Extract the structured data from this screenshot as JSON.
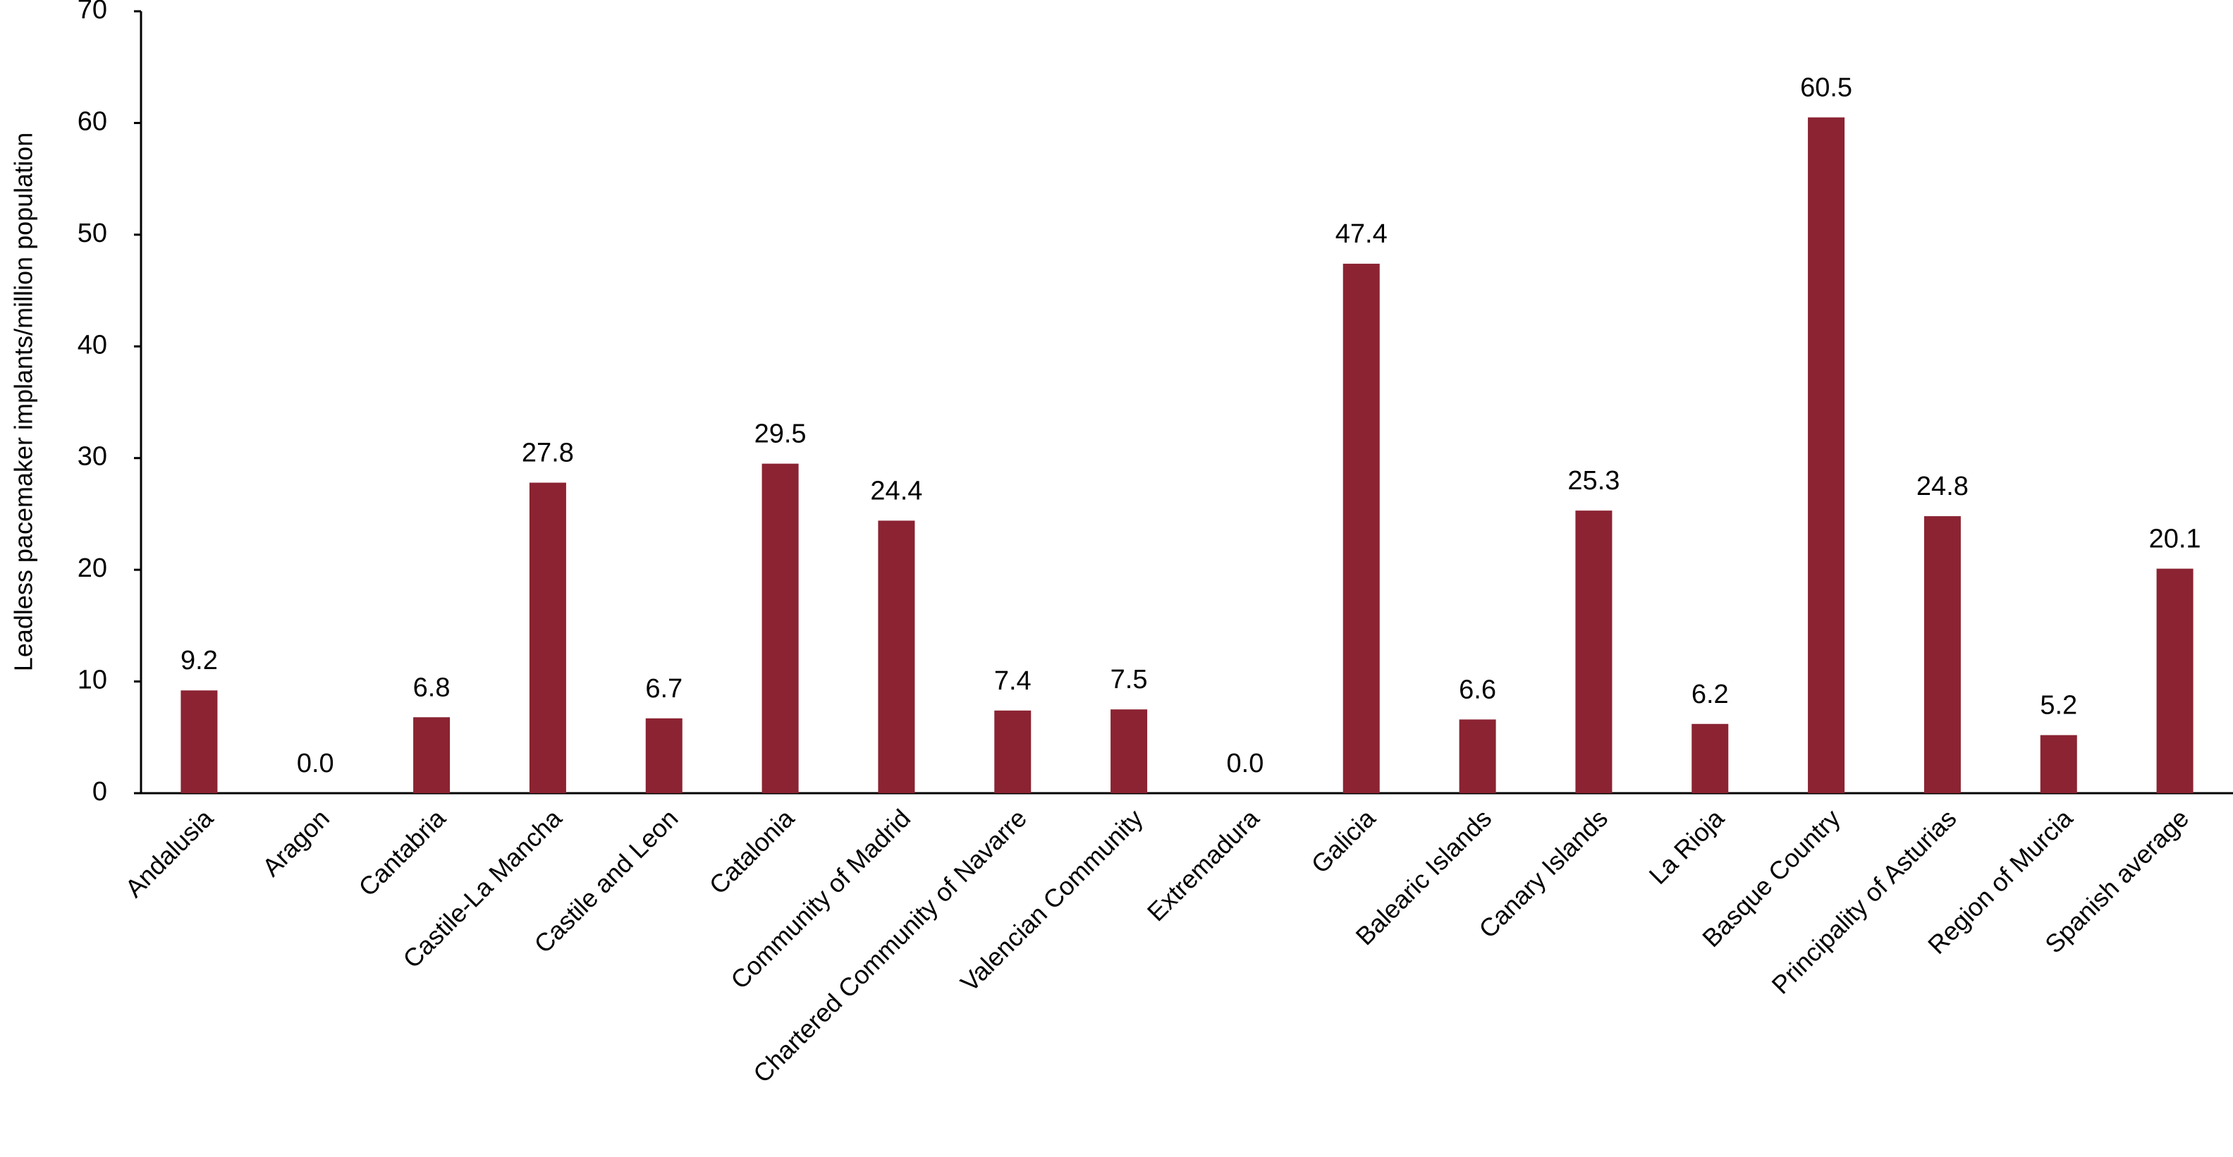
{
  "chart_data": {
    "type": "bar",
    "y_label": "Leadless pacemaker implants/million population",
    "categories": [
      "Andalusia",
      "Aragon",
      "Cantabria",
      "Castile-La Mancha",
      "Castile and Leon",
      "Catalonia",
      "Community of Madrid",
      "Chartered Community of Navarre",
      "Valencian Community",
      "Extremadura",
      "Galicia",
      "Balearic Islands",
      "Canary Islands",
      "La Rioja",
      "Basque Country",
      "Principality of Asturias",
      "Region of Murcia",
      "Spanish average"
    ],
    "values": [
      9.2,
      0,
      6.8,
      27.8,
      6.7,
      29.5,
      24.4,
      7.4,
      7.5,
      0,
      47.4,
      6.6,
      25.3,
      6.2,
      60.5,
      24.8,
      5.2,
      20.1
    ],
    "value_labels": [
      "9.2",
      "0.0",
      "6.8",
      "27.8",
      "6.7",
      "29.5",
      "24.4",
      "7.4",
      "7.5",
      "0.0",
      "47.4",
      "6.6",
      "25.3",
      "6.2",
      "60.5",
      "24.8",
      "5.2",
      "20.1"
    ],
    "color": "#8b2332",
    "ylim": [
      0,
      70
    ],
    "yticks": [
      0,
      10,
      20,
      30,
      40,
      50,
      60,
      70
    ],
    "grid": false
  }
}
